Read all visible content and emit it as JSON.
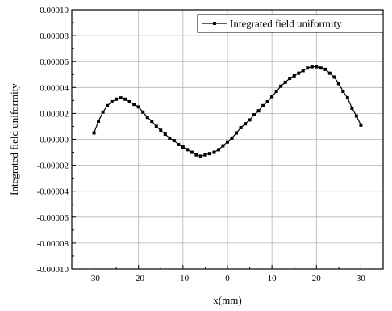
{
  "chart_data": {
    "type": "line",
    "xlabel": "x(mm)",
    "ylabel": "Integrated field uniformity",
    "xlim": [
      -35,
      35
    ],
    "ylim": [
      -0.0001,
      0.0001
    ],
    "x_ticks": [
      -30,
      -20,
      -10,
      0,
      10,
      20,
      30
    ],
    "x_tick_labels": [
      "-30",
      "-20",
      "-10",
      "0",
      "10",
      "20",
      "30"
    ],
    "y_ticks": [
      -0.0001,
      -8e-05,
      -6e-05,
      -4e-05,
      -2e-05,
      0,
      2e-05,
      4e-05,
      6e-05,
      8e-05,
      0.0001
    ],
    "y_tick_labels": [
      "-0.00010",
      "-0.00008",
      "-0.00006",
      "-0.00004",
      "-0.00002",
      "0.00000",
      "0.00002",
      "0.00004",
      "0.00006",
      "0.00008",
      "0.00010"
    ],
    "grid": true,
    "legend_position": "top-right",
    "marker": "square",
    "series_color": "#000000",
    "series": [
      {
        "name": "Integrated field uniformity",
        "x": [
          -30,
          -29,
          -28,
          -27,
          -26,
          -25,
          -24,
          -23,
          -22,
          -21,
          -20,
          -19,
          -18,
          -17,
          -16,
          -15,
          -14,
          -13,
          -12,
          -11,
          -10,
          -9,
          -8,
          -7,
          -6,
          -5,
          -4,
          -3,
          -2,
          -1,
          0,
          1,
          2,
          3,
          4,
          5,
          6,
          7,
          8,
          9,
          10,
          11,
          12,
          13,
          14,
          15,
          16,
          17,
          18,
          19,
          20,
          21,
          22,
          23,
          24,
          25,
          26,
          27,
          28,
          29,
          30
        ],
        "y": [
          5e-06,
          1.4e-05,
          2.1e-05,
          2.6e-05,
          2.9e-05,
          3.1e-05,
          3.2e-05,
          3.1e-05,
          2.9e-05,
          2.7e-05,
          2.5e-05,
          2.1e-05,
          1.7e-05,
          1.4e-05,
          1e-05,
          7e-06,
          4e-06,
          1e-06,
          -1e-06,
          -4e-06,
          -6e-06,
          -8e-06,
          -1e-05,
          -1.2e-05,
          -1.3e-05,
          -1.2e-05,
          -1.1e-05,
          -1e-05,
          -8e-06,
          -5e-06,
          -2e-06,
          1e-06,
          5e-06,
          9e-06,
          1.2e-05,
          1.5e-05,
          1.9e-05,
          2.2e-05,
          2.6e-05,
          2.9e-05,
          3.3e-05,
          3.7e-05,
          4.1e-05,
          4.4e-05,
          4.7e-05,
          4.9e-05,
          5.1e-05,
          5.3e-05,
          5.5e-05,
          5.6e-05,
          5.6e-05,
          5.5e-05,
          5.4e-05,
          5.1e-05,
          4.8e-05,
          4.3e-05,
          3.7e-05,
          3.2e-05,
          2.4e-05,
          1.8e-05,
          1.1e-05
        ]
      }
    ]
  }
}
